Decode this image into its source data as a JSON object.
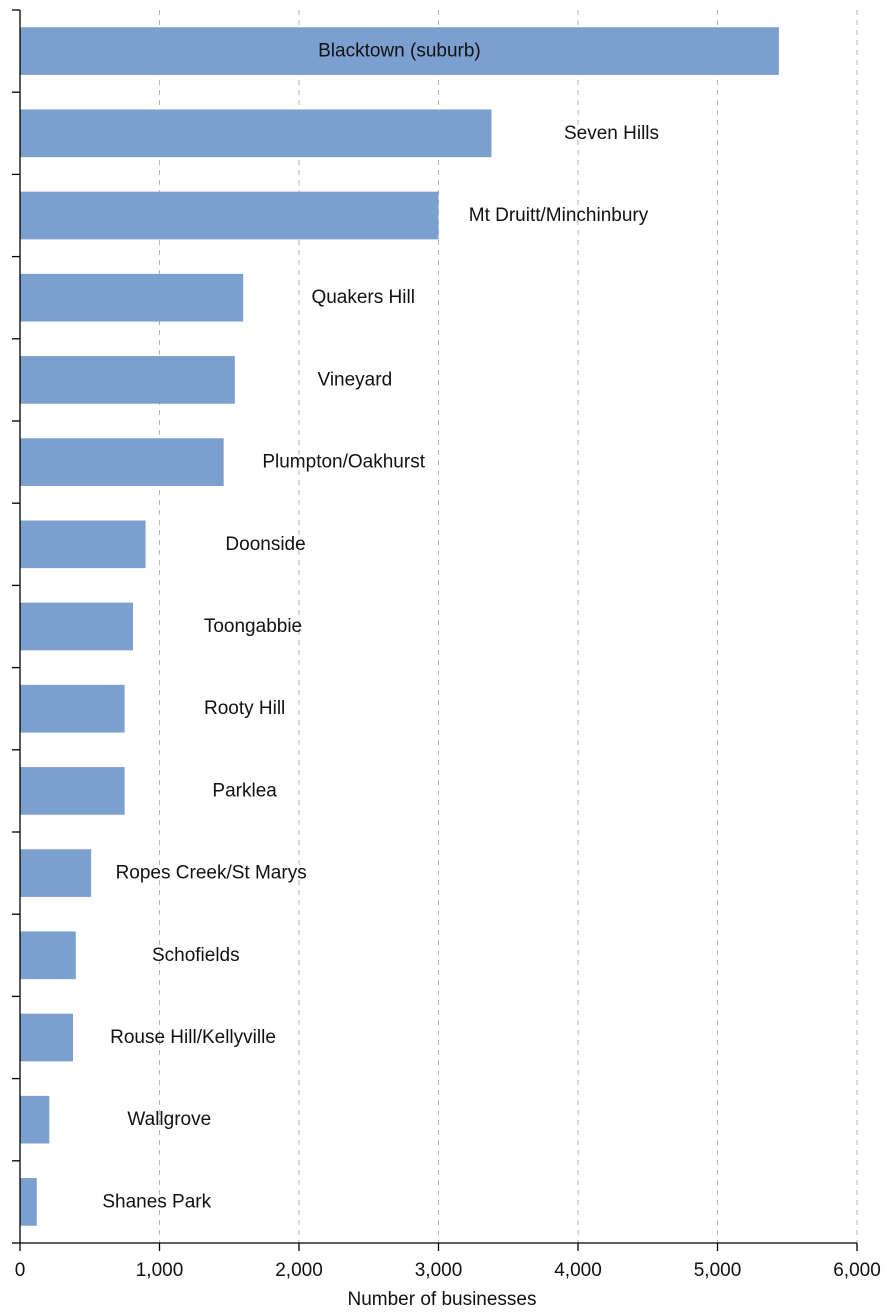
{
  "chart_data": {
    "type": "bar",
    "orientation": "horizontal",
    "categories": [
      "Blacktown (suburb)",
      "Seven Hills",
      "Mt Druitt/Minchinbury",
      "Quakers Hill",
      "Vineyard",
      "Plumpton/Oakhurst",
      "Doonside",
      "Toongabbie",
      "Rooty Hill",
      "Parklea",
      "Ropes Creek/St Marys",
      "Schofields",
      "Rouse Hill/Kellyville",
      "Wallgrove",
      "Shanes Park"
    ],
    "values": [
      5440,
      3380,
      3000,
      1600,
      1540,
      1460,
      900,
      810,
      750,
      750,
      510,
      400,
      380,
      210,
      120
    ],
    "title": "",
    "xlabel": "Number of businesses",
    "ylabel": "",
    "xlim": [
      0,
      6000
    ],
    "xticks": [
      0,
      1000,
      2000,
      3000,
      4000,
      5000,
      6000
    ],
    "xtick_labels": [
      "0",
      "1,000",
      "2,000",
      "3,000",
      "4,000",
      "5,000",
      "6,000"
    ],
    "grid": "vertical dashed",
    "legend": "none",
    "bar_color": "#7b9fcf",
    "labels": "category names placed beside each bar (inside the first bar)"
  }
}
